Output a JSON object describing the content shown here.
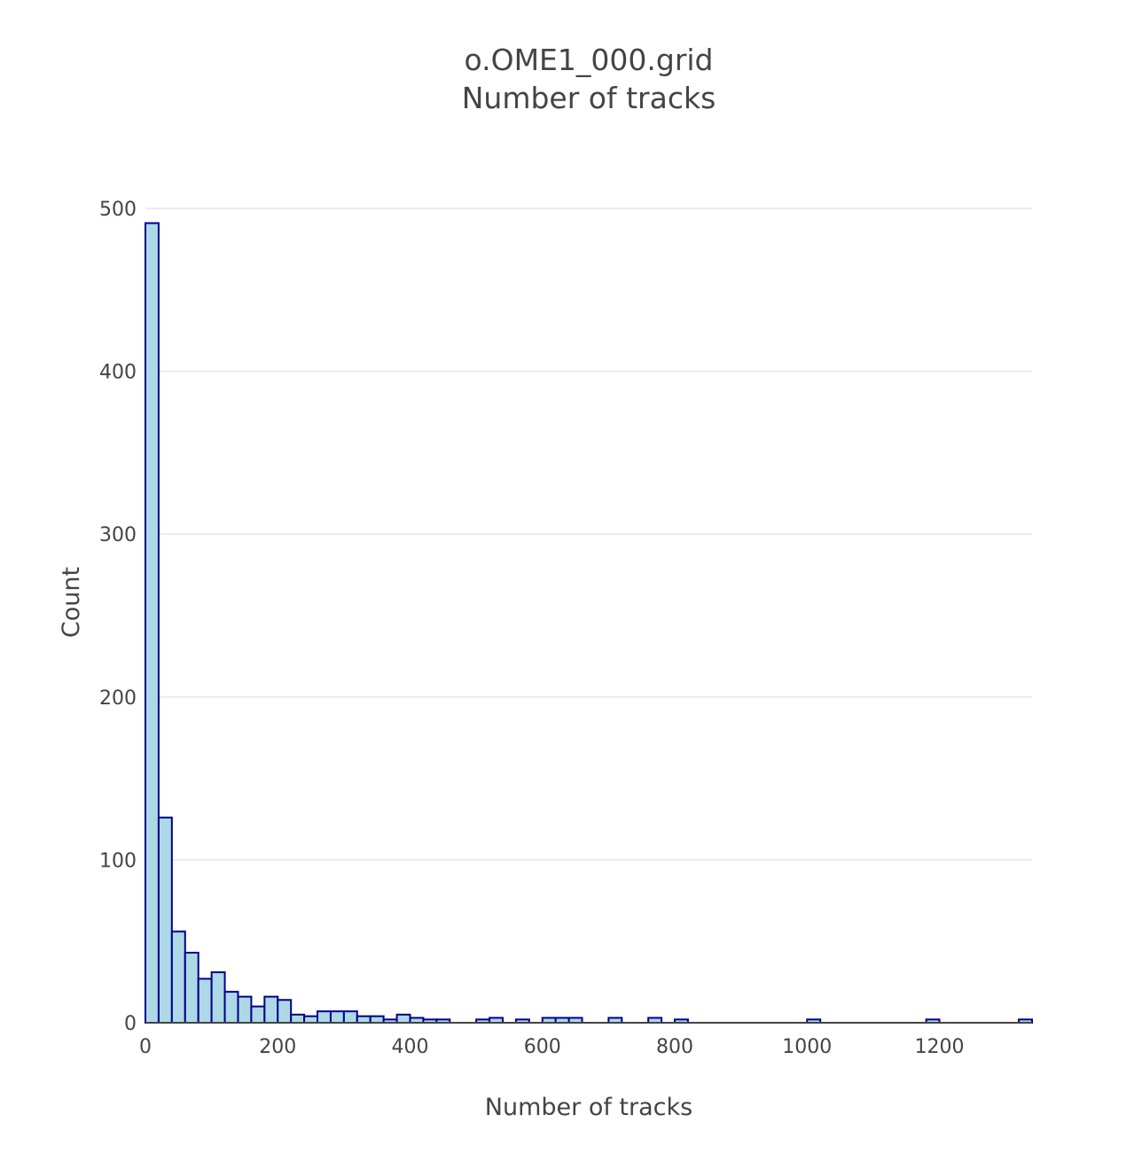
{
  "chart_data": {
    "type": "bar",
    "title_line1": "o.OME1_000.grid",
    "title_line2": "Number of tracks",
    "xlabel": "Number of tracks",
    "ylabel": "Count",
    "xlim": [
      0,
      1340
    ],
    "ylim": [
      0,
      500
    ],
    "x_ticks": [
      {
        "value": 0,
        "label": "0"
      },
      {
        "value": 200,
        "label": "200"
      },
      {
        "value": 400,
        "label": "400"
      },
      {
        "value": 600,
        "label": "600"
      },
      {
        "value": 800,
        "label": "800"
      },
      {
        "value": 1000,
        "label": "1000"
      },
      {
        "value": 1200,
        "label": "1200"
      }
    ],
    "y_ticks": [
      {
        "value": 0,
        "label": "0"
      },
      {
        "value": 100,
        "label": "100"
      },
      {
        "value": 200,
        "label": "200"
      },
      {
        "value": 300,
        "label": "300"
      },
      {
        "value": 400,
        "label": "400"
      },
      {
        "value": 500,
        "label": "500"
      }
    ],
    "bin_width": 20,
    "bin_starts": [
      0,
      20,
      40,
      60,
      80,
      100,
      120,
      140,
      160,
      180,
      200,
      220,
      240,
      260,
      280,
      300,
      320,
      340,
      360,
      380,
      400,
      420,
      440,
      500,
      520,
      560,
      600,
      620,
      640,
      700,
      760,
      800,
      1000,
      1180,
      1320
    ],
    "counts": [
      491,
      126,
      56,
      43,
      27,
      31,
      19,
      16,
      10,
      16,
      14,
      5,
      4,
      7,
      7,
      7,
      4,
      4,
      2,
      5,
      3,
      2,
      2,
      2,
      3,
      2,
      3,
      3,
      3,
      3,
      3,
      2,
      2,
      2,
      2
    ],
    "grid": true,
    "legend": "none",
    "colors": {
      "bar_fill": "#add8e6",
      "bar_outline": "#00008b",
      "grid": "#e6e6e6",
      "text": "#444444"
    }
  }
}
